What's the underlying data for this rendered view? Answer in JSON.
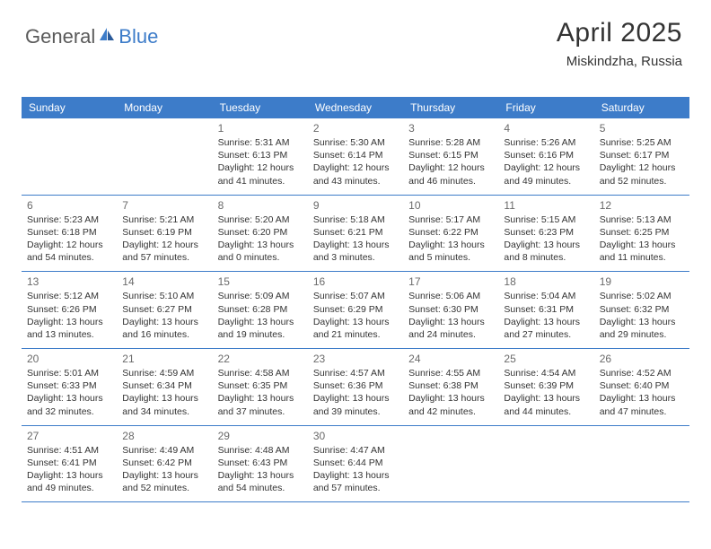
{
  "logo": {
    "part1": "General",
    "part2": "Blue"
  },
  "header": {
    "title": "April 2025",
    "location": "Miskindzha, Russia"
  },
  "colors": {
    "header_bg": "#3d7cc9",
    "header_text": "#ffffff",
    "week_border": "#3d7cc9",
    "text": "#333333",
    "daynum": "#6a6a6a"
  },
  "weekdays": [
    "Sunday",
    "Monday",
    "Tuesday",
    "Wednesday",
    "Thursday",
    "Friday",
    "Saturday"
  ],
  "weeks": [
    [
      null,
      null,
      {
        "n": "1",
        "sr": "Sunrise: 5:31 AM",
        "ss": "Sunset: 6:13 PM",
        "d1": "Daylight: 12 hours",
        "d2": "and 41 minutes."
      },
      {
        "n": "2",
        "sr": "Sunrise: 5:30 AM",
        "ss": "Sunset: 6:14 PM",
        "d1": "Daylight: 12 hours",
        "d2": "and 43 minutes."
      },
      {
        "n": "3",
        "sr": "Sunrise: 5:28 AM",
        "ss": "Sunset: 6:15 PM",
        "d1": "Daylight: 12 hours",
        "d2": "and 46 minutes."
      },
      {
        "n": "4",
        "sr": "Sunrise: 5:26 AM",
        "ss": "Sunset: 6:16 PM",
        "d1": "Daylight: 12 hours",
        "d2": "and 49 minutes."
      },
      {
        "n": "5",
        "sr": "Sunrise: 5:25 AM",
        "ss": "Sunset: 6:17 PM",
        "d1": "Daylight: 12 hours",
        "d2": "and 52 minutes."
      }
    ],
    [
      {
        "n": "6",
        "sr": "Sunrise: 5:23 AM",
        "ss": "Sunset: 6:18 PM",
        "d1": "Daylight: 12 hours",
        "d2": "and 54 minutes."
      },
      {
        "n": "7",
        "sr": "Sunrise: 5:21 AM",
        "ss": "Sunset: 6:19 PM",
        "d1": "Daylight: 12 hours",
        "d2": "and 57 minutes."
      },
      {
        "n": "8",
        "sr": "Sunrise: 5:20 AM",
        "ss": "Sunset: 6:20 PM",
        "d1": "Daylight: 13 hours",
        "d2": "and 0 minutes."
      },
      {
        "n": "9",
        "sr": "Sunrise: 5:18 AM",
        "ss": "Sunset: 6:21 PM",
        "d1": "Daylight: 13 hours",
        "d2": "and 3 minutes."
      },
      {
        "n": "10",
        "sr": "Sunrise: 5:17 AM",
        "ss": "Sunset: 6:22 PM",
        "d1": "Daylight: 13 hours",
        "d2": "and 5 minutes."
      },
      {
        "n": "11",
        "sr": "Sunrise: 5:15 AM",
        "ss": "Sunset: 6:23 PM",
        "d1": "Daylight: 13 hours",
        "d2": "and 8 minutes."
      },
      {
        "n": "12",
        "sr": "Sunrise: 5:13 AM",
        "ss": "Sunset: 6:25 PM",
        "d1": "Daylight: 13 hours",
        "d2": "and 11 minutes."
      }
    ],
    [
      {
        "n": "13",
        "sr": "Sunrise: 5:12 AM",
        "ss": "Sunset: 6:26 PM",
        "d1": "Daylight: 13 hours",
        "d2": "and 13 minutes."
      },
      {
        "n": "14",
        "sr": "Sunrise: 5:10 AM",
        "ss": "Sunset: 6:27 PM",
        "d1": "Daylight: 13 hours",
        "d2": "and 16 minutes."
      },
      {
        "n": "15",
        "sr": "Sunrise: 5:09 AM",
        "ss": "Sunset: 6:28 PM",
        "d1": "Daylight: 13 hours",
        "d2": "and 19 minutes."
      },
      {
        "n": "16",
        "sr": "Sunrise: 5:07 AM",
        "ss": "Sunset: 6:29 PM",
        "d1": "Daylight: 13 hours",
        "d2": "and 21 minutes."
      },
      {
        "n": "17",
        "sr": "Sunrise: 5:06 AM",
        "ss": "Sunset: 6:30 PM",
        "d1": "Daylight: 13 hours",
        "d2": "and 24 minutes."
      },
      {
        "n": "18",
        "sr": "Sunrise: 5:04 AM",
        "ss": "Sunset: 6:31 PM",
        "d1": "Daylight: 13 hours",
        "d2": "and 27 minutes."
      },
      {
        "n": "19",
        "sr": "Sunrise: 5:02 AM",
        "ss": "Sunset: 6:32 PM",
        "d1": "Daylight: 13 hours",
        "d2": "and 29 minutes."
      }
    ],
    [
      {
        "n": "20",
        "sr": "Sunrise: 5:01 AM",
        "ss": "Sunset: 6:33 PM",
        "d1": "Daylight: 13 hours",
        "d2": "and 32 minutes."
      },
      {
        "n": "21",
        "sr": "Sunrise: 4:59 AM",
        "ss": "Sunset: 6:34 PM",
        "d1": "Daylight: 13 hours",
        "d2": "and 34 minutes."
      },
      {
        "n": "22",
        "sr": "Sunrise: 4:58 AM",
        "ss": "Sunset: 6:35 PM",
        "d1": "Daylight: 13 hours",
        "d2": "and 37 minutes."
      },
      {
        "n": "23",
        "sr": "Sunrise: 4:57 AM",
        "ss": "Sunset: 6:36 PM",
        "d1": "Daylight: 13 hours",
        "d2": "and 39 minutes."
      },
      {
        "n": "24",
        "sr": "Sunrise: 4:55 AM",
        "ss": "Sunset: 6:38 PM",
        "d1": "Daylight: 13 hours",
        "d2": "and 42 minutes."
      },
      {
        "n": "25",
        "sr": "Sunrise: 4:54 AM",
        "ss": "Sunset: 6:39 PM",
        "d1": "Daylight: 13 hours",
        "d2": "and 44 minutes."
      },
      {
        "n": "26",
        "sr": "Sunrise: 4:52 AM",
        "ss": "Sunset: 6:40 PM",
        "d1": "Daylight: 13 hours",
        "d2": "and 47 minutes."
      }
    ],
    [
      {
        "n": "27",
        "sr": "Sunrise: 4:51 AM",
        "ss": "Sunset: 6:41 PM",
        "d1": "Daylight: 13 hours",
        "d2": "and 49 minutes."
      },
      {
        "n": "28",
        "sr": "Sunrise: 4:49 AM",
        "ss": "Sunset: 6:42 PM",
        "d1": "Daylight: 13 hours",
        "d2": "and 52 minutes."
      },
      {
        "n": "29",
        "sr": "Sunrise: 4:48 AM",
        "ss": "Sunset: 6:43 PM",
        "d1": "Daylight: 13 hours",
        "d2": "and 54 minutes."
      },
      {
        "n": "30",
        "sr": "Sunrise: 4:47 AM",
        "ss": "Sunset: 6:44 PM",
        "d1": "Daylight: 13 hours",
        "d2": "and 57 minutes."
      },
      null,
      null,
      null
    ]
  ]
}
